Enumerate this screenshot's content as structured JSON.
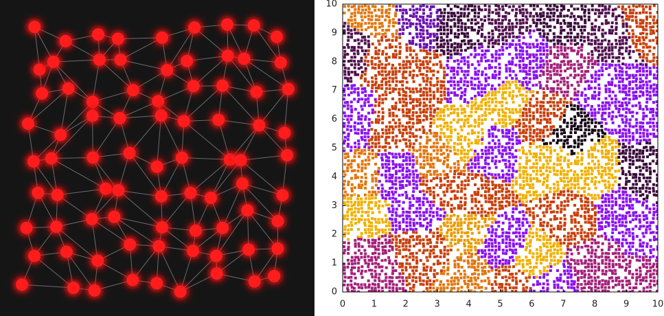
{
  "chart_data": {
    "type": "scatter",
    "xlim": [
      0,
      10
    ],
    "ylim": [
      0,
      10
    ],
    "xticks": [
      0,
      1,
      2,
      3,
      4,
      5,
      6,
      7,
      8,
      9,
      10
    ],
    "yticks": [
      0,
      1,
      2,
      3,
      4,
      5,
      6,
      7,
      8,
      9,
      10
    ]
  }
}
